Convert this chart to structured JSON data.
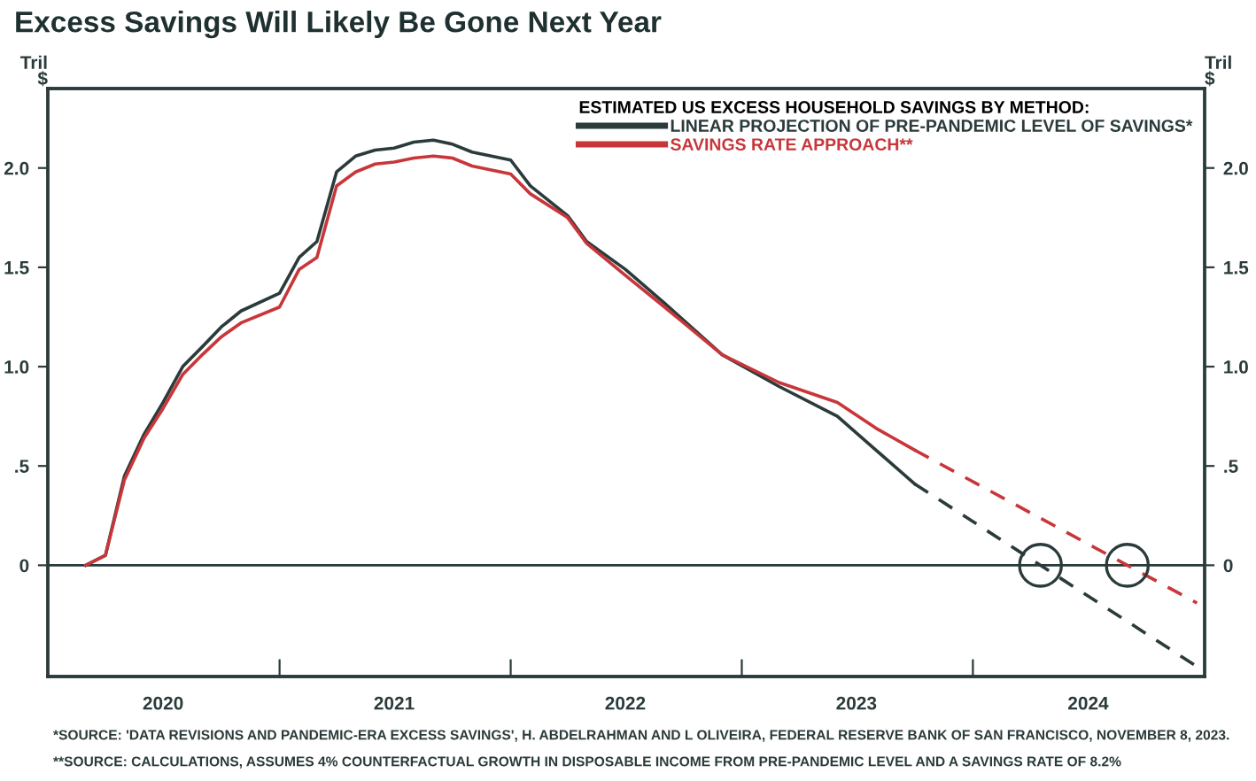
{
  "chart_data": {
    "type": "line",
    "title": "Excess Savings Will Likely Be Gone Next Year",
    "ylabel": "Tril\n$",
    "y2label": "Tril\n$",
    "legend_title": "ESTIMATED US EXCESS HOUSEHOLD SAVINGS BY METHOD:",
    "legend": "top right",
    "x": [
      "2020-03",
      "2020-04",
      "2020-05",
      "2020-06",
      "2020-07",
      "2020-08",
      "2020-09",
      "2020-10",
      "2020-11",
      "2021-01",
      "2021-02",
      "2021-03",
      "2021-04",
      "2021-05",
      "2021-06",
      "2021-07",
      "2021-08",
      "2021-09",
      "2021-10",
      "2021-11",
      "2022-01",
      "2022-02",
      "2022-04",
      "2022-05",
      "2022-07",
      "2022-09",
      "2022-12",
      "2023-03",
      "2023-06",
      "2023-08",
      "2023-10"
    ],
    "series": [
      {
        "name": "LINEAR PROJECTION OF PRE-PANDEMIC LEVEL OF SAVINGS*",
        "color": "#2b3a3a",
        "line_style": "solid",
        "values": [
          0,
          0.05,
          0.45,
          0.66,
          0.82,
          1.0,
          1.1,
          1.2,
          1.28,
          1.37,
          1.55,
          1.63,
          1.98,
          2.06,
          2.09,
          2.1,
          2.13,
          2.14,
          2.12,
          2.08,
          2.04,
          1.91,
          1.76,
          1.63,
          1.49,
          1.32,
          1.06,
          0.9,
          0.75,
          0.58,
          0.41
        ]
      },
      {
        "name": "SAVINGS RATE APPROACH**",
        "color": "#c8363a",
        "line_style": "solid",
        "values": [
          0,
          0.05,
          0.43,
          0.64,
          0.79,
          0.96,
          1.06,
          1.15,
          1.22,
          1.3,
          1.49,
          1.55,
          1.91,
          1.98,
          2.02,
          2.03,
          2.05,
          2.06,
          2.05,
          2.01,
          1.97,
          1.87,
          1.75,
          1.62,
          1.46,
          1.3,
          1.06,
          0.92,
          0.82,
          0.69,
          0.58
        ]
      },
      {
        "color": "#2b3a3a",
        "line_style": "dashed",
        "x": [
          "2023-10",
          "2024-12-20"
        ],
        "values": [
          0.41,
          -0.51
        ]
      },
      {
        "color": "#c8363a",
        "line_style": "dashed",
        "x": [
          "2023-10",
          "2024-12-20"
        ],
        "values": [
          0.58,
          -0.19
        ]
      }
    ],
    "xlim": [
      "2020-01-01",
      "2025-01-01"
    ],
    "xticks": [
      {
        "value": "2020-07-01",
        "label": "2020"
      },
      {
        "value": "2021-01-01",
        "label": null
      },
      {
        "value": "2021-07-01",
        "label": "2021"
      },
      {
        "value": "2022-01-01",
        "label": null
      },
      {
        "value": "2022-07-01",
        "label": "2022"
      },
      {
        "value": "2023-01-01",
        "label": null
      },
      {
        "value": "2023-07-01",
        "label": "2023"
      },
      {
        "value": "2024-01-01",
        "label": null
      },
      {
        "value": "2024-07-01",
        "label": "2024"
      }
    ],
    "ylim": [
      -0.56,
      2.4
    ],
    "yticks": [
      {
        "value": 0,
        "label": "0"
      },
      {
        "value": 0.5,
        "label": ".5"
      },
      {
        "value": 1.0,
        "label": "1.0"
      },
      {
        "value": 1.5,
        "label": "1.5"
      },
      {
        "value": 2.0,
        "label": "2.0"
      }
    ],
    "y2lim": [
      -0.56,
      2.4
    ],
    "y2ticks": [
      {
        "value": 0,
        "label": "0"
      },
      {
        "value": 0.5,
        "label": ".5"
      },
      {
        "value": 1.0,
        "label": "1.0"
      },
      {
        "value": 1.5,
        "label": "1.5"
      },
      {
        "value": 2.0,
        "label": "2.0"
      }
    ],
    "ref_lines": [
      {
        "axis": "y",
        "value": 0,
        "color": "#2b3a3a",
        "line_style": "solid"
      }
    ],
    "grid": false,
    "annotations": [
      "*SOURCE: 'DATA REVISIONS AND PANDEMIC-ERA EXCESS SAVINGS', H. ABDELRAHMAN AND L OLIVEIRA, FEDERAL RESERVE BANK OF SAN FRANCISCO, NOVEMBER 8, 2023.",
      "**SOURCE: CALCULATIONS, ASSUMES 4% COUNTERFACTUAL GROWTH IN DISPOSABLE INCOME FROM PRE-PANDEMIC LEVEL AND A SAVINGS RATE OF 8.2%"
    ]
  }
}
